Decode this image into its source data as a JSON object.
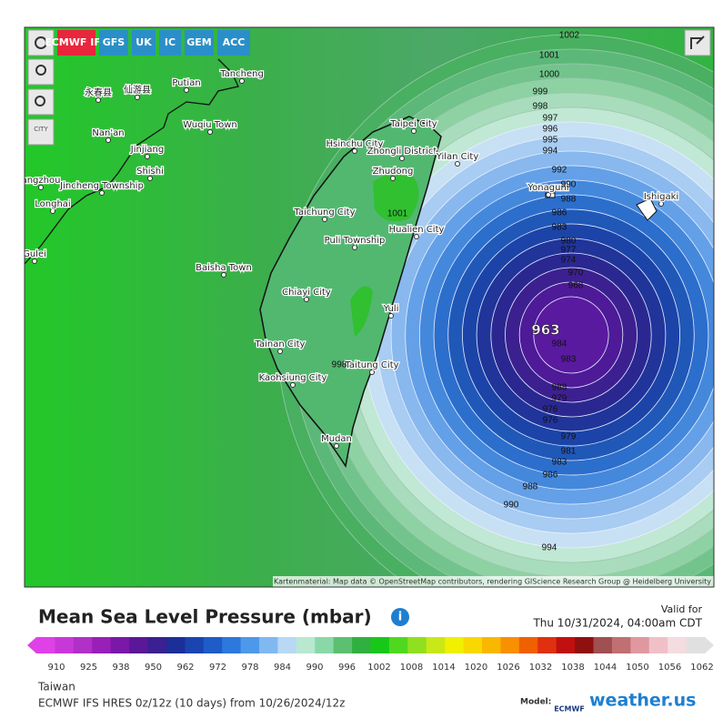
{
  "toolbar": {
    "models": [
      "ECMWF IFS",
      "GFS",
      "UK",
      "IC",
      "GEM",
      "ACC"
    ],
    "city_toggle": "CITY"
  },
  "map": {
    "places": [
      "Tancheng",
      "Putian",
      "永春县",
      "仙游县",
      "Wuqiu Town",
      "Nan'an",
      "Jinjiang",
      "Shishi",
      "Jincheng Township",
      "angzhou",
      "Longhai",
      "Gulei",
      "Taipei City",
      "Hsinchu City",
      "Zhongli District",
      "Yilan City",
      "Zhudong",
      "Taichung City",
      "Puli Township",
      "Hualien City",
      "Baisha Town",
      "Chiayi City",
      "Yuli",
      "Tainan City",
      "Kaohsiung City",
      "Taitung City",
      "Mudan",
      "Yonaguni",
      "Ishigaki"
    ],
    "contour_labels": [
      1002,
      1001,
      1000,
      999,
      998,
      997,
      996,
      995,
      994,
      992,
      990,
      988,
      986,
      983,
      980,
      977,
      974,
      970,
      968,
      984,
      983,
      988,
      979,
      976,
      976,
      979,
      981,
      983,
      986,
      988,
      990,
      994,
      1001,
      998
    ],
    "center_pressure": 963,
    "attribution": "Kartenmaterial: Map data © OpenStreetMap contributors, rendering GIScience Research Group @ Heidelberg University"
  },
  "title": "Mean Sea Level Pressure (mbar)",
  "valid_label": "Valid for",
  "valid_time": "Thu 10/31/2024, 04:00am CDT",
  "colorbar": {
    "ticks": [
      910,
      925,
      938,
      950,
      962,
      972,
      978,
      984,
      990,
      996,
      1002,
      1008,
      1014,
      1020,
      1026,
      1032,
      1038,
      1044,
      1050,
      1056,
      1062
    ],
    "colors": [
      "#e040e8",
      "#c838d8",
      "#b030c8",
      "#9820b8",
      "#7a18a8",
      "#5a1898",
      "#3a2090",
      "#1c2e98",
      "#1a44b0",
      "#1e5cc8",
      "#2c78dc",
      "#4e98ea",
      "#80b8f0",
      "#b8d8f4",
      "#b8e8d0",
      "#8ad8a8",
      "#5cc070",
      "#30b040",
      "#18c818",
      "#50d820",
      "#90e020",
      "#c8e818",
      "#f0f000",
      "#f8d800",
      "#f8b800",
      "#f89000",
      "#f06000",
      "#e03010",
      "#c01010",
      "#901010",
      "#a05050",
      "#c07070",
      "#e098a0",
      "#f0c0c8",
      "#f4dce0",
      "#e0e0e0"
    ]
  },
  "footer": {
    "region": "Taiwan",
    "run": "ECMWF IFS HRES 0z/12z (10 days) from 10/26/2024/12z",
    "model_label": "Model:",
    "model_logo": "ECMWF",
    "brand": "weather.us"
  }
}
